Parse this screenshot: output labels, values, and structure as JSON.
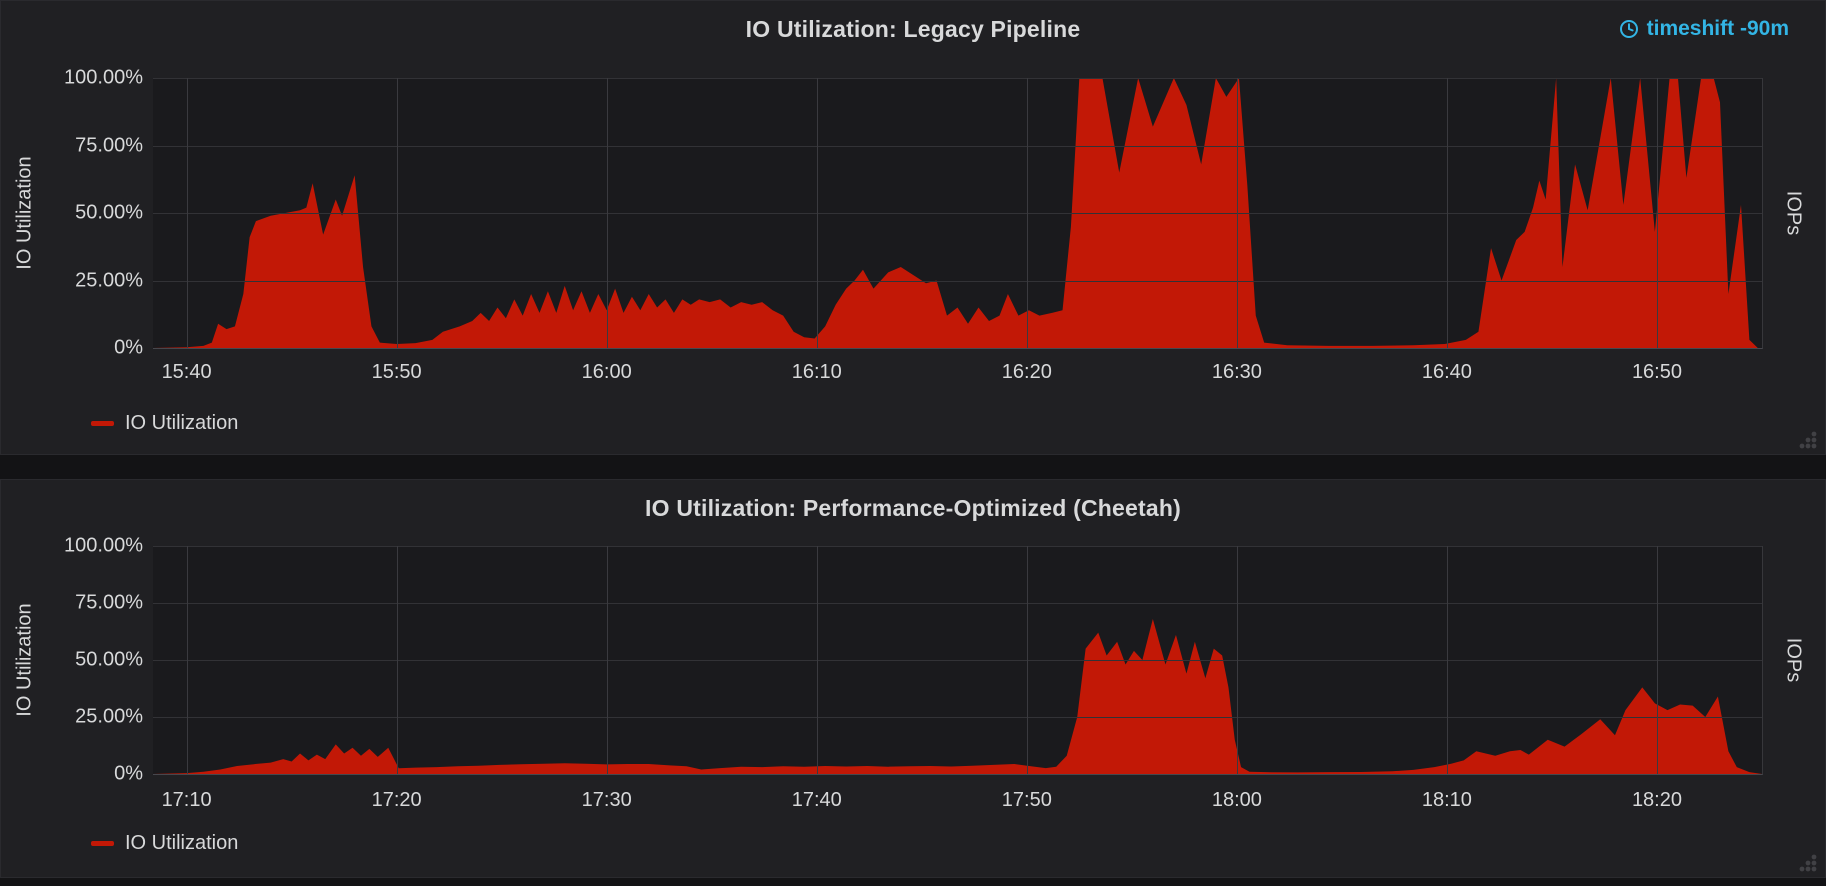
{
  "colors": {
    "accent_blue": "#33b5e5",
    "series_red": "#c21806",
    "panel_bg": "#202023",
    "page_bg": "#131315",
    "text": "#d8d9da"
  },
  "panels": [
    {
      "title": "IO Utilization: Legacy Pipeline",
      "timeshift_label": "timeshift -90m",
      "left_axis_label": "IO Utilization",
      "right_axis_label": "IOPs",
      "legend_label": "IO Utilization"
    },
    {
      "title": "IO Utilization: Performance-Optimized (Cheetah)",
      "left_axis_label": "IO Utilization",
      "right_axis_label": "IOPs",
      "legend_label": "IO Utilization"
    }
  ],
  "chart_data": [
    {
      "type": "area",
      "title": "IO Utilization: Legacy Pipeline",
      "ylabel": "IO Utilization",
      "y2label": "IOPs",
      "ylim": [
        0,
        100
      ],
      "grid": true,
      "legend_position": "bottom-left",
      "x_domain_minutes": [
        0,
        76.6
      ],
      "x_ticks": [
        {
          "label": "15:40",
          "minute": 1.6
        },
        {
          "label": "15:50",
          "minute": 11.6
        },
        {
          "label": "16:00",
          "minute": 21.6
        },
        {
          "label": "16:10",
          "minute": 31.6
        },
        {
          "label": "16:20",
          "minute": 41.6
        },
        {
          "label": "16:30",
          "minute": 51.6
        },
        {
          "label": "16:40",
          "minute": 61.6
        },
        {
          "label": "16:50",
          "minute": 71.6
        }
      ],
      "y_ticks": [
        {
          "label": "100.00%",
          "value": 100
        },
        {
          "label": "75.00%",
          "value": 75
        },
        {
          "label": "50.00%",
          "value": 50
        },
        {
          "label": "25.00%",
          "value": 25
        },
        {
          "label": "0%",
          "value": 0
        }
      ],
      "series": [
        {
          "name": "IO Utilization",
          "color": "#c21806",
          "unit": "percent",
          "points": [
            [
              0,
              0
            ],
            [
              1.6,
              0.3
            ],
            [
              2.4,
              0.8
            ],
            [
              2.8,
              2
            ],
            [
              3.1,
              9
            ],
            [
              3.5,
              7
            ],
            [
              3.9,
              8
            ],
            [
              4.3,
              20
            ],
            [
              4.6,
              41
            ],
            [
              4.9,
              47
            ],
            [
              5.6,
              49
            ],
            [
              6.3,
              50
            ],
            [
              7.0,
              51
            ],
            [
              7.3,
              52
            ],
            [
              7.6,
              61
            ],
            [
              8.1,
              42
            ],
            [
              8.7,
              55
            ],
            [
              9.0,
              49
            ],
            [
              9.6,
              64
            ],
            [
              10.0,
              30
            ],
            [
              10.4,
              8
            ],
            [
              10.8,
              2
            ],
            [
              11.6,
              1.5
            ],
            [
              12.5,
              1.8
            ],
            [
              13.3,
              3
            ],
            [
              13.8,
              6
            ],
            [
              14.6,
              8
            ],
            [
              15.2,
              10
            ],
            [
              15.6,
              13
            ],
            [
              16.0,
              10
            ],
            [
              16.4,
              15
            ],
            [
              16.8,
              11
            ],
            [
              17.2,
              18
            ],
            [
              17.6,
              12
            ],
            [
              18.0,
              20
            ],
            [
              18.4,
              13
            ],
            [
              18.8,
              21
            ],
            [
              19.2,
              13
            ],
            [
              19.6,
              23
            ],
            [
              20.0,
              14
            ],
            [
              20.4,
              21
            ],
            [
              20.8,
              13
            ],
            [
              21.2,
              20
            ],
            [
              21.6,
              14
            ],
            [
              22.0,
              22
            ],
            [
              22.4,
              13
            ],
            [
              22.8,
              19
            ],
            [
              23.2,
              14
            ],
            [
              23.6,
              20
            ],
            [
              24.0,
              15
            ],
            [
              24.4,
              18
            ],
            [
              24.8,
              13
            ],
            [
              25.2,
              18
            ],
            [
              25.6,
              16
            ],
            [
              26.0,
              18
            ],
            [
              26.5,
              17
            ],
            [
              27.0,
              18
            ],
            [
              27.5,
              15
            ],
            [
              28.0,
              17
            ],
            [
              28.5,
              16
            ],
            [
              29.0,
              17
            ],
            [
              29.5,
              14
            ],
            [
              30.0,
              12
            ],
            [
              30.5,
              6
            ],
            [
              31.0,
              4
            ],
            [
              31.5,
              3.5
            ],
            [
              32.0,
              8
            ],
            [
              32.5,
              16
            ],
            [
              33.0,
              22
            ],
            [
              33.4,
              25
            ],
            [
              33.8,
              29
            ],
            [
              34.3,
              22
            ],
            [
              35.0,
              28
            ],
            [
              35.6,
              30
            ],
            [
              36.2,
              27
            ],
            [
              36.8,
              24
            ],
            [
              37.3,
              25
            ],
            [
              37.8,
              12
            ],
            [
              38.3,
              15
            ],
            [
              38.8,
              9
            ],
            [
              39.3,
              15
            ],
            [
              39.8,
              10
            ],
            [
              40.3,
              12
            ],
            [
              40.7,
              20
            ],
            [
              41.2,
              12
            ],
            [
              41.7,
              14
            ],
            [
              42.2,
              12
            ],
            [
              42.8,
              13
            ],
            [
              43.3,
              14
            ],
            [
              43.7,
              45
            ],
            [
              44.1,
              100
            ],
            [
              45.2,
              100
            ],
            [
              46.0,
              65
            ],
            [
              46.9,
              100
            ],
            [
              47.6,
              82
            ],
            [
              48.6,
              100
            ],
            [
              49.2,
              90
            ],
            [
              49.9,
              68
            ],
            [
              50.6,
              100
            ],
            [
              51.1,
              93
            ],
            [
              51.7,
              100
            ],
            [
              52.1,
              60
            ],
            [
              52.5,
              12
            ],
            [
              52.9,
              2
            ],
            [
              54.0,
              1
            ],
            [
              56.0,
              0.8
            ],
            [
              58.0,
              0.8
            ],
            [
              60.0,
              1
            ],
            [
              61.5,
              1.5
            ],
            [
              62.5,
              3
            ],
            [
              63.1,
              6
            ],
            [
              63.7,
              37
            ],
            [
              64.2,
              25
            ],
            [
              64.9,
              40
            ],
            [
              65.3,
              43
            ],
            [
              65.7,
              52
            ],
            [
              66.0,
              62
            ],
            [
              66.3,
              55
            ],
            [
              66.8,
              100
            ],
            [
              67.1,
              30
            ],
            [
              67.7,
              68
            ],
            [
              68.3,
              51
            ],
            [
              69.4,
              100
            ],
            [
              70.0,
              53
            ],
            [
              70.8,
              100
            ],
            [
              71.5,
              43
            ],
            [
              72.2,
              100
            ],
            [
              72.6,
              100
            ],
            [
              73.0,
              63
            ],
            [
              73.7,
              100
            ],
            [
              74.3,
              100
            ],
            [
              74.6,
              91
            ],
            [
              75.0,
              20
            ],
            [
              75.6,
              53
            ],
            [
              76.0,
              3
            ],
            [
              76.4,
              0
            ]
          ]
        }
      ]
    },
    {
      "type": "area",
      "title": "IO Utilization: Performance-Optimized (Cheetah)",
      "ylabel": "IO Utilization",
      "y2label": "IOPs",
      "ylim": [
        0,
        100
      ],
      "grid": true,
      "legend_position": "bottom-left",
      "x_domain_minutes": [
        0,
        76.6
      ],
      "x_ticks": [
        {
          "label": "17:10",
          "minute": 1.6
        },
        {
          "label": "17:20",
          "minute": 11.6
        },
        {
          "label": "17:30",
          "minute": 21.6
        },
        {
          "label": "17:40",
          "minute": 31.6
        },
        {
          "label": "17:50",
          "minute": 41.6
        },
        {
          "label": "18:00",
          "minute": 51.6
        },
        {
          "label": "18:10",
          "minute": 61.6
        },
        {
          "label": "18:20",
          "minute": 71.6
        }
      ],
      "y_ticks": [
        {
          "label": "100.00%",
          "value": 100
        },
        {
          "label": "75.00%",
          "value": 75
        },
        {
          "label": "50.00%",
          "value": 50
        },
        {
          "label": "25.00%",
          "value": 25
        },
        {
          "label": "0%",
          "value": 0
        }
      ],
      "series": [
        {
          "name": "IO Utilization",
          "color": "#c21806",
          "unit": "percent",
          "points": [
            [
              0,
              0
            ],
            [
              1.6,
              0.4
            ],
            [
              2.4,
              1
            ],
            [
              3.2,
              2
            ],
            [
              4.0,
              3.5
            ],
            [
              5.0,
              4.5
            ],
            [
              5.6,
              5
            ],
            [
              6.2,
              6.5
            ],
            [
              6.6,
              5.5
            ],
            [
              7.0,
              9
            ],
            [
              7.4,
              6
            ],
            [
              7.8,
              8.5
            ],
            [
              8.2,
              6.5
            ],
            [
              8.7,
              13
            ],
            [
              9.1,
              9
            ],
            [
              9.5,
              11.5
            ],
            [
              9.9,
              8
            ],
            [
              10.3,
              11
            ],
            [
              10.7,
              7.5
            ],
            [
              11.2,
              11.5
            ],
            [
              11.7,
              2.5
            ],
            [
              12.5,
              2.8
            ],
            [
              13.5,
              3
            ],
            [
              14.5,
              3.4
            ],
            [
              15.5,
              3.6
            ],
            [
              16.5,
              4
            ],
            [
              17.5,
              4.3
            ],
            [
              18.6,
              4.5
            ],
            [
              19.6,
              4.7
            ],
            [
              20.6,
              4.5
            ],
            [
              21.6,
              4.2
            ],
            [
              22.6,
              4.4
            ],
            [
              23.6,
              4.4
            ],
            [
              24.6,
              3.8
            ],
            [
              25.4,
              3.4
            ],
            [
              26.1,
              2
            ],
            [
              27.0,
              2.6
            ],
            [
              28.0,
              3.2
            ],
            [
              29.0,
              3
            ],
            [
              30.0,
              3.4
            ],
            [
              31.0,
              3.2
            ],
            [
              32.0,
              3.5
            ],
            [
              33.0,
              3.3
            ],
            [
              34.0,
              3.5
            ],
            [
              35.0,
              3.2
            ],
            [
              36.0,
              3.4
            ],
            [
              37.0,
              3.5
            ],
            [
              38.0,
              3.3
            ],
            [
              39.0,
              3.6
            ],
            [
              40.0,
              4
            ],
            [
              41.0,
              4.4
            ],
            [
              41.8,
              3.4
            ],
            [
              42.5,
              2.6
            ],
            [
              43.0,
              3.2
            ],
            [
              43.5,
              8
            ],
            [
              44.0,
              25
            ],
            [
              44.4,
              55
            ],
            [
              45.0,
              62
            ],
            [
              45.4,
              52
            ],
            [
              45.9,
              58
            ],
            [
              46.3,
              48
            ],
            [
              46.7,
              54
            ],
            [
              47.1,
              50
            ],
            [
              47.6,
              68
            ],
            [
              48.2,
              48
            ],
            [
              48.7,
              61
            ],
            [
              49.2,
              44
            ],
            [
              49.6,
              58
            ],
            [
              50.1,
              42
            ],
            [
              50.5,
              55
            ],
            [
              50.9,
              52
            ],
            [
              51.2,
              38
            ],
            [
              51.5,
              15
            ],
            [
              51.8,
              3
            ],
            [
              52.2,
              1
            ],
            [
              53.0,
              0.8
            ],
            [
              54.5,
              0.7
            ],
            [
              56.0,
              0.8
            ],
            [
              57.5,
              0.9
            ],
            [
              59.0,
              1.2
            ],
            [
              60.0,
              1.8
            ],
            [
              61.0,
              3
            ],
            [
              61.8,
              4.5
            ],
            [
              62.4,
              6
            ],
            [
              63.0,
              10
            ],
            [
              63.9,
              8
            ],
            [
              64.6,
              10
            ],
            [
              65.1,
              10.5
            ],
            [
              65.5,
              8.5
            ],
            [
              66.4,
              15
            ],
            [
              67.2,
              12
            ],
            [
              68.0,
              17.5
            ],
            [
              68.9,
              24
            ],
            [
              69.6,
              17
            ],
            [
              70.1,
              28
            ],
            [
              70.9,
              38
            ],
            [
              71.5,
              31
            ],
            [
              72.1,
              28
            ],
            [
              72.7,
              30.5
            ],
            [
              73.3,
              30
            ],
            [
              73.9,
              25
            ],
            [
              74.5,
              34
            ],
            [
              75.0,
              10
            ],
            [
              75.4,
              3
            ],
            [
              76.0,
              0.8
            ],
            [
              76.6,
              0
            ]
          ]
        }
      ]
    }
  ]
}
